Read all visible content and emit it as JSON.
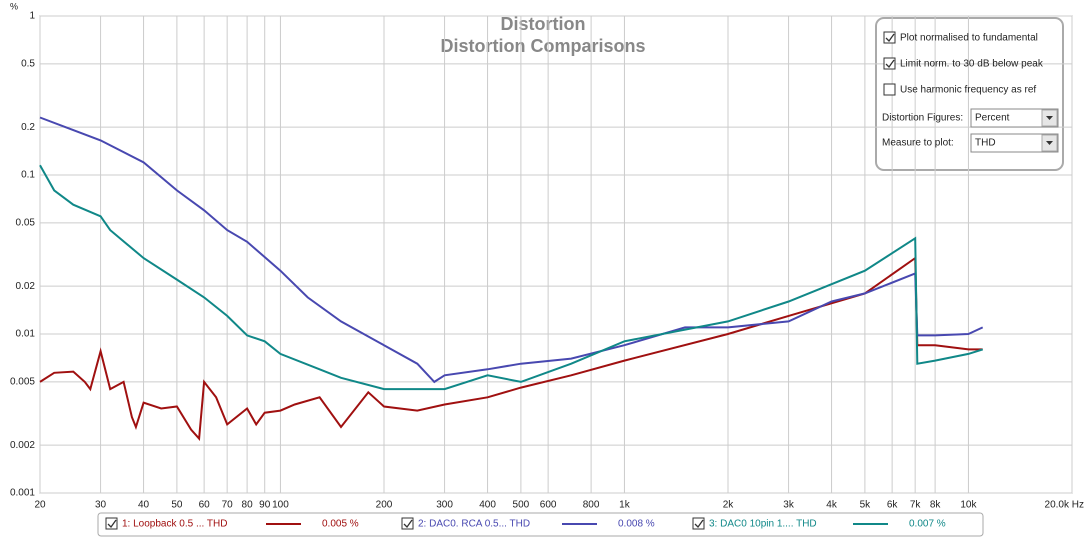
{
  "chart_data": {
    "type": "line",
    "title": "Distortion",
    "subtitle": "Distortion Comparisons",
    "y_label": "%",
    "xlog": true,
    "ylog": true,
    "grid": true,
    "xlim": [
      20,
      20000
    ],
    "ylim": [
      0.001,
      1
    ],
    "xticks": [
      20,
      30,
      40,
      50,
      60,
      70,
      80,
      90,
      100,
      200,
      300,
      400,
      500,
      600,
      800,
      {
        "value": 1000,
        "label": "1k"
      },
      {
        "value": 2000,
        "label": "2k"
      },
      {
        "value": 3000,
        "label": "3k"
      },
      {
        "value": 4000,
        "label": "4k"
      },
      {
        "value": 5000,
        "label": "5k"
      },
      {
        "value": 6000,
        "label": "6k"
      },
      {
        "value": 7000,
        "label": "7k"
      },
      {
        "value": 8000,
        "label": "8k"
      },
      {
        "value": 10000,
        "label": "10k"
      },
      {
        "value": 20000,
        "label": "20.0k Hz"
      }
    ],
    "yticks": [
      1,
      0.5,
      0.2,
      0.1,
      0.05,
      0.02,
      0.01,
      0.005,
      0.002,
      0.001
    ],
    "series": [
      {
        "name": "1: Loopback 0.5 ... THD",
        "legend_value": "0.005 %",
        "color": "#a01010",
        "x": [
          20,
          22,
          25,
          27,
          28,
          30,
          32,
          35,
          37,
          38,
          40,
          45,
          50,
          55,
          58,
          60,
          65,
          70,
          80,
          85,
          90,
          100,
          110,
          130,
          150,
          180,
          200,
          250,
          300,
          400,
          500,
          700,
          1000,
          2000,
          3000,
          5000,
          7000,
          7100,
          8000,
          10000,
          11000
        ],
        "values": [
          0.005,
          0.0057,
          0.0058,
          0.005,
          0.0045,
          0.0078,
          0.0045,
          0.005,
          0.003,
          0.0026,
          0.0037,
          0.0034,
          0.0035,
          0.0025,
          0.0022,
          0.005,
          0.004,
          0.0027,
          0.0034,
          0.0027,
          0.0032,
          0.0033,
          0.0036,
          0.004,
          0.0026,
          0.0043,
          0.0035,
          0.0033,
          0.0036,
          0.004,
          0.0046,
          0.0055,
          0.0068,
          0.01,
          0.013,
          0.018,
          0.03,
          0.0085,
          0.0085,
          0.008,
          0.008
        ]
      },
      {
        "name": "2: DAC0. RCA 0.5... THD",
        "legend_value": "0.008 %",
        "color": "#4848b0",
        "x": [
          20,
          30,
          40,
          50,
          60,
          70,
          80,
          100,
          120,
          150,
          200,
          250,
          280,
          300,
          400,
          500,
          700,
          1000,
          1500,
          2000,
          3000,
          4000,
          5000,
          7000,
          7100,
          8000,
          10000,
          11000
        ],
        "values": [
          0.23,
          0.165,
          0.12,
          0.08,
          0.06,
          0.045,
          0.038,
          0.025,
          0.017,
          0.012,
          0.0085,
          0.0065,
          0.005,
          0.0055,
          0.006,
          0.0065,
          0.007,
          0.0085,
          0.011,
          0.011,
          0.012,
          0.016,
          0.018,
          0.024,
          0.0098,
          0.0098,
          0.01,
          0.011
        ]
      },
      {
        "name": "3: DAC0 10pin 1.... THD",
        "legend_value": "0.007 %",
        "color": "#108888",
        "x": [
          20,
          22,
          25,
          30,
          32,
          40,
          50,
          60,
          70,
          80,
          90,
          100,
          130,
          150,
          200,
          300,
          400,
          500,
          700,
          1000,
          2000,
          3000,
          5000,
          7000,
          7100,
          8000,
          10000,
          11000
        ],
        "values": [
          0.115,
          0.08,
          0.065,
          0.055,
          0.045,
          0.03,
          0.022,
          0.017,
          0.013,
          0.0098,
          0.009,
          0.0075,
          0.006,
          0.0053,
          0.0045,
          0.0045,
          0.0055,
          0.005,
          0.0065,
          0.009,
          0.012,
          0.016,
          0.025,
          0.04,
          0.0065,
          0.0068,
          0.0075,
          0.008
        ]
      }
    ]
  },
  "panel": {
    "options": [
      {
        "label": "Plot normalised to fundamental",
        "checked": true
      },
      {
        "label": "Limit norm. to 30 dB below peak",
        "checked": true
      },
      {
        "label": "Use harmonic frequency as ref",
        "checked": false
      }
    ],
    "dropdowns": [
      {
        "label": "Distortion Figures:",
        "value": "Percent"
      },
      {
        "label": "Measure to plot:",
        "value": "THD"
      }
    ]
  }
}
